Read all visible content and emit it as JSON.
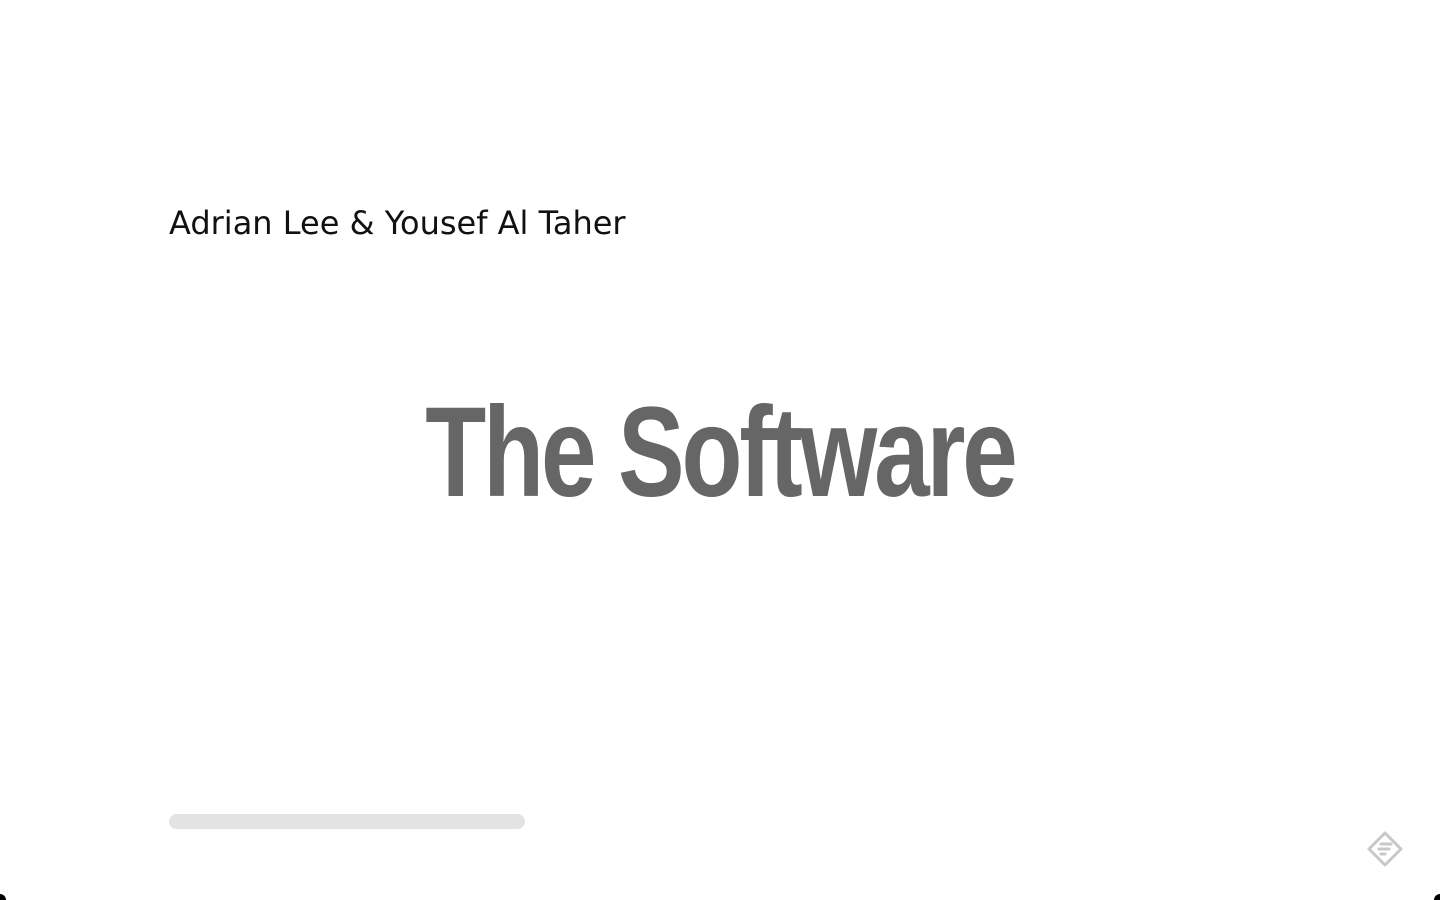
{
  "slide": {
    "authors": "Adrian Lee & Yousef Al Taher",
    "title": "The Software"
  },
  "progress": {
    "fraction": 1.0
  },
  "colors": {
    "title": "#666666",
    "authors": "#111111",
    "progress_track": "#e3e3e3",
    "icon": "#c8c8c8"
  },
  "icons": {
    "brand": "presentation-logo-icon"
  }
}
